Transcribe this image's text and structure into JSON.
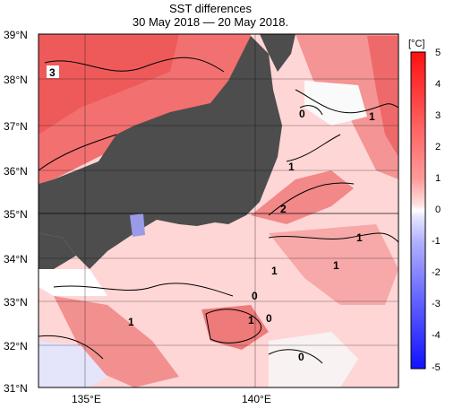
{
  "title": {
    "line1": "SST differences",
    "line2": "30 May 2018 — 20 May 2018."
  },
  "map": {
    "lat_labels": [
      "39°N",
      "38°N",
      "37°N",
      "36°N",
      "35°N",
      "34°N",
      "33°N",
      "32°N",
      "31°N"
    ],
    "lon_labels": [
      "135°E",
      "140°E"
    ],
    "land_color": "#4d4d4d",
    "contour_labels": [
      {
        "text": "3"
      },
      {
        "text": "0"
      },
      {
        "text": "1"
      },
      {
        "text": "1"
      },
      {
        "text": "2"
      },
      {
        "text": "1"
      },
      {
        "text": "1"
      },
      {
        "text": "1"
      },
      {
        "text": "0"
      },
      {
        "text": "0"
      },
      {
        "text": "1"
      },
      {
        "text": "1"
      },
      {
        "text": "0"
      }
    ]
  },
  "colorbar": {
    "unit": "[°C]",
    "ticks": [
      "5",
      "4",
      "3",
      "2",
      "1",
      "0",
      "-1",
      "-2",
      "-3",
      "-4",
      "-5"
    ],
    "colors_top_to_bottom": [
      "#ff1a1a",
      "#ff4d4d",
      "#ff7373",
      "#ff9999",
      "#ffc2c2",
      "#ffe0e0",
      "#ffffff",
      "#e0e0ff",
      "#b8b8ff",
      "#8f8fff",
      "#6666ff",
      "#3d3dff",
      "#1414ff"
    ]
  }
}
